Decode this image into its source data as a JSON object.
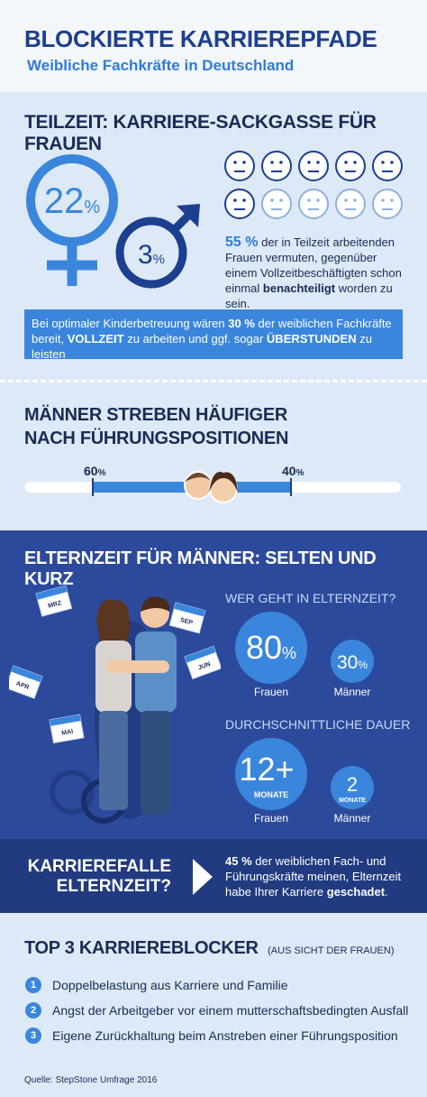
{
  "header": {
    "title": "BLOCKIERTE KARRIEREPFADE",
    "subtitle": "Weibliche Fachkräfte in Deutschland"
  },
  "teilzeit": {
    "title": "TEILZEIT: KARRIERE-SACKGASSE FÜR FRAUEN",
    "women": {
      "value": "22",
      "unit": "%"
    },
    "men": {
      "value": "3",
      "unit": "%"
    },
    "stat_parts": [
      "55 %",
      "der in Teilzeit arbeitenden Frauen vermuten, gegenüber einem Vollzeitbeschäftigten schon einmal",
      "benachteiligt",
      "worden zu sein."
    ],
    "box_parts": [
      "Bei optimaler Kinderbetreuung wären",
      "30 %",
      "der weiblichen Fachkräfte bereit,",
      "VOLLZEIT",
      "zu arbeiten und ggf. sogar",
      "ÜBERSTUNDEN",
      "zu leisten"
    ]
  },
  "fuehrung": {
    "title_lines": [
      "MÄNNER STREBEN HÄUFIGER",
      "NACH FÜHRUNGSPOSITIONEN"
    ],
    "men": {
      "value": "60",
      "unit": "%"
    },
    "women": {
      "value": "40",
      "unit": "%"
    }
  },
  "elternzeit": {
    "title": "ELTERNZEIT FÜR MÄNNER: SELTEN UND KURZ",
    "papers": [
      "MRZ",
      "APR",
      "MAI",
      "SEP",
      "JUN"
    ],
    "who": {
      "question": "WER GEHT IN ELTERNZEIT?",
      "women": {
        "value": "80",
        "unit": "%",
        "label": "Frauen"
      },
      "men": {
        "value": "30",
        "unit": "%",
        "label": "Männer"
      }
    },
    "duration": {
      "question": "DURCHSCHNITTLICHE DAUER",
      "women": {
        "value": "12+",
        "unit": "MONATE",
        "label": "Frauen"
      },
      "men": {
        "value": "2",
        "unit": "MONATE",
        "label": "Männer"
      }
    }
  },
  "falle": {
    "title_lines": [
      "KARRIEREFALLE",
      "ELTERNZEIT?"
    ],
    "parts": [
      "45 %",
      "der weiblichen Fach- und Führungskräfte meinen, Elternzeit habe Ihrer Karriere",
      "geschadet",
      "."
    ]
  },
  "blocker": {
    "title": "TOP 3 KARRIEREBLOCKER",
    "note": "(AUS SICHT DER FRAUEN)",
    "items": [
      {
        "number": "1",
        "text": "Doppelbelastung aus Karriere und Familie"
      },
      {
        "number": "2",
        "text": "Angst der Arbeitgeber vor einem mutterschaftsbedingten Ausfall"
      },
      {
        "number": "3",
        "text": "Eigene Zurückhaltung beim Anstreben einer Führungsposition"
      }
    ]
  },
  "source": "Quelle: StepStone Umfrage 2016"
}
